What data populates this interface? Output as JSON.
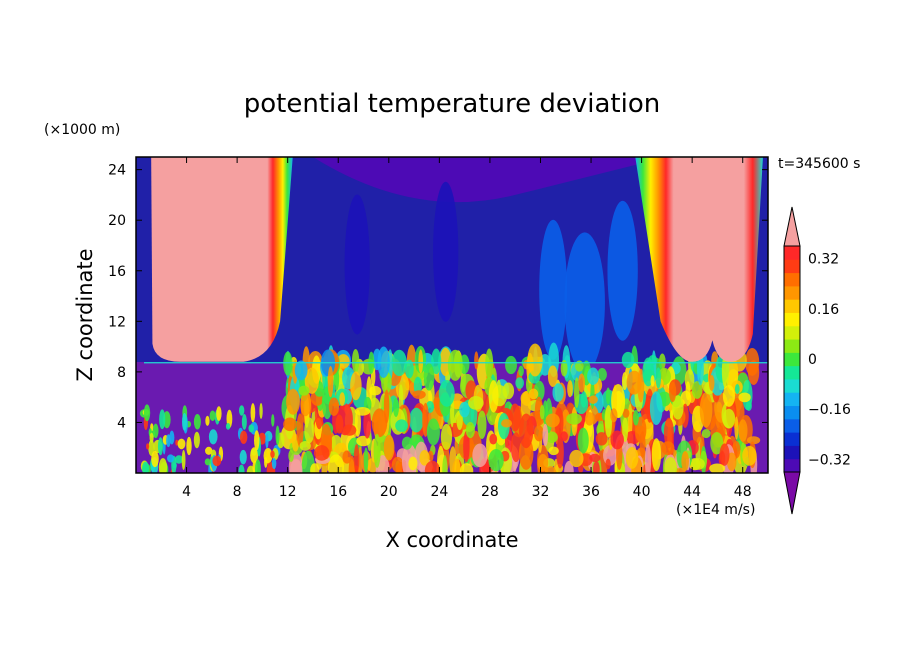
{
  "chart_data": {
    "type": "heatmap",
    "title": "potential temperature deviation",
    "xlabel": "X coordinate",
    "ylabel": "Z coordinate",
    "x_unit": "(×1E4 m/s)",
    "y_unit": "(×1000 m)",
    "time_label": "t=345600 s",
    "xlim": [
      0,
      50
    ],
    "ylim": [
      0,
      25
    ],
    "x_ticks": [
      4,
      8,
      12,
      16,
      20,
      24,
      28,
      32,
      36,
      40,
      44,
      48
    ],
    "x_tick_labels": [
      "4",
      "8",
      "12",
      "16",
      "20",
      "24",
      "28",
      "32",
      "36",
      "40",
      "44",
      "48"
    ],
    "y_ticks": [
      4,
      8,
      12,
      16,
      20,
      24
    ],
    "y_tick_labels": [
      "4",
      "8",
      "12",
      "16",
      "20",
      "24"
    ],
    "colorbar": {
      "levels": [
        -0.4,
        -0.36,
        -0.32,
        -0.28,
        -0.24,
        -0.2,
        -0.16,
        -0.12,
        -0.08,
        -0.04,
        0,
        0.04,
        0.08,
        0.12,
        0.16,
        0.2,
        0.24,
        0.28,
        0.32,
        0.36,
        0.4
      ],
      "colors": [
        "#7a0aa6",
        "#4d0ab5",
        "#1c12b8",
        "#0a2fd3",
        "#0a5ee8",
        "#0a8ef0",
        "#14b4f2",
        "#1adcd2",
        "#14e896",
        "#3ce83c",
        "#8cea14",
        "#d2f00a",
        "#fff000",
        "#ffc800",
        "#ff9600",
        "#ff6e00",
        "#ff3c14",
        "#ff2828",
        "#f5a0a0"
      ],
      "tick_values": [
        -0.32,
        -0.16,
        0,
        0.16,
        0.32
      ],
      "tick_labels": [
        "−0.32",
        "−0.16",
        "0",
        "0.16",
        "0.32"
      ],
      "extend": "both"
    },
    "regions": {
      "background_color": "#2020a8",
      "lower_layer_color": "#6a1ab0",
      "left_warm_core": {
        "x_range": [
          1.5,
          10
        ],
        "z_range": [
          8.8,
          25
        ],
        "color": "#f5a0a0"
      },
      "right_warm_core": {
        "x_range": [
          43,
          48
        ],
        "z_range": [
          8.8,
          25
        ],
        "color": "#f5a0a0"
      },
      "inversion_height": 8.8,
      "turbulent_zone": {
        "x_range": [
          12,
          49
        ],
        "z_range": [
          0,
          9
        ]
      }
    }
  }
}
